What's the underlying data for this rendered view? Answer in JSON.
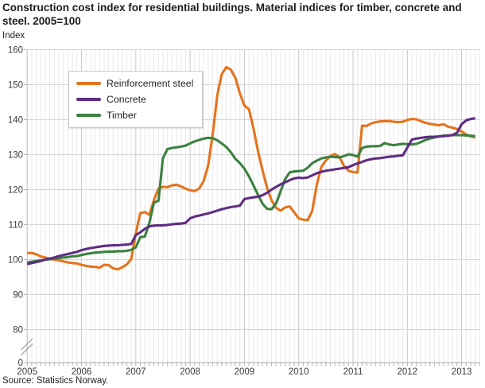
{
  "title": "Construction cost index for residential buildings. Material indices for timber, concrete and steel. 2005=100",
  "y_axis_unit": "Index",
  "source": "Source: Statistics Norway.",
  "chart_data": {
    "type": "line",
    "x_start": "2005-01",
    "x_frequency": "monthly",
    "x_tick_labels": [
      "2005",
      "2006",
      "2007",
      "2008",
      "2009",
      "2010",
      "2011",
      "2012",
      "2013"
    ],
    "y_ticks": [
      160,
      150,
      140,
      130,
      120,
      110,
      100,
      90,
      80
    ],
    "y_zero_label": "0",
    "ylim": [
      80,
      160
    ],
    "y_axis_break": true,
    "grid": "vertical minor monthly, vertical major yearly, horizontal every 10",
    "legend_position": "top-left",
    "colors": {
      "steel": "#e5731c",
      "concrete": "#5f2c83",
      "timber": "#3b8140",
      "grid_minor": "#e9e9e9",
      "grid_major": "#c9c9c9",
      "grid_h": "#d6d6d6",
      "axis": "#a8a8a8"
    },
    "series": [
      {
        "name": "Reinforcement steel",
        "color": "#e5731c",
        "values": [
          101.8,
          101.9,
          101.5,
          100.9,
          100.6,
          100.2,
          100.0,
          99.8,
          99.5,
          99.2,
          99.0,
          98.9,
          98.5,
          98.2,
          98.0,
          97.9,
          97.7,
          98.5,
          98.4,
          97.5,
          97.2,
          97.8,
          98.6,
          100.2,
          107.5,
          113.3,
          113.6,
          112.8,
          117.0,
          120.3,
          120.8,
          120.7,
          121.2,
          121.4,
          120.9,
          120.3,
          119.8,
          119.6,
          120.3,
          122.5,
          127.0,
          136.0,
          147.0,
          153.0,
          155.0,
          154.3,
          152.0,
          147.5,
          144.0,
          143.0,
          137.5,
          131.0,
          125.5,
          120.5,
          117.0,
          114.8,
          114.0,
          114.9,
          115.2,
          113.5,
          111.8,
          111.4,
          111.3,
          114.0,
          121.5,
          126.5,
          128.3,
          129.6,
          130.2,
          129.3,
          126.8,
          125.4,
          125.0,
          124.9,
          138.3,
          138.2,
          138.9,
          139.3,
          139.5,
          139.6,
          139.6,
          139.4,
          139.3,
          139.4,
          139.9,
          140.2,
          140.1,
          139.6,
          139.1,
          138.8,
          138.6,
          138.4,
          138.7,
          138.0,
          137.7,
          137.3,
          136.6,
          135.8,
          135.2,
          134.9
        ]
      },
      {
        "name": "Concrete",
        "color": "#5f2c83",
        "values": [
          98.7,
          99.0,
          99.3,
          99.6,
          100.0,
          100.3,
          100.6,
          101.0,
          101.3,
          101.6,
          101.9,
          102.2,
          102.7,
          103.0,
          103.3,
          103.5,
          103.7,
          103.9,
          104.0,
          104.1,
          104.1,
          104.2,
          104.3,
          104.5,
          107.0,
          107.8,
          108.8,
          109.5,
          109.7,
          109.8,
          109.8,
          109.9,
          110.1,
          110.2,
          110.3,
          110.5,
          111.8,
          112.3,
          112.6,
          112.9,
          113.2,
          113.6,
          114.0,
          114.4,
          114.7,
          115.0,
          115.2,
          115.4,
          117.3,
          117.6,
          117.8,
          118.0,
          118.4,
          119.1,
          120.0,
          120.8,
          121.5,
          122.1,
          122.7,
          123.2,
          123.4,
          123.3,
          123.5,
          124.1,
          124.7,
          125.1,
          125.4,
          125.6,
          125.8,
          126.0,
          126.2,
          126.4,
          127.0,
          127.5,
          127.9,
          128.4,
          128.7,
          128.9,
          129.0,
          129.2,
          129.4,
          129.5,
          129.7,
          129.8,
          132.0,
          134.3,
          134.6,
          134.8,
          135.0,
          135.1,
          135.1,
          135.2,
          135.3,
          135.4,
          135.6,
          136.3,
          138.7,
          139.8,
          140.2,
          140.4
        ]
      },
      {
        "name": "Timber",
        "color": "#3b8140",
        "values": [
          99.2,
          99.4,
          99.6,
          99.8,
          100.0,
          100.1,
          100.3,
          100.4,
          100.6,
          100.7,
          100.9,
          101.0,
          101.3,
          101.6,
          101.8,
          102.0,
          102.1,
          102.2,
          102.3,
          102.3,
          102.4,
          102.4,
          102.5,
          102.8,
          103.5,
          106.4,
          106.6,
          110.5,
          116.3,
          116.8,
          129.0,
          131.6,
          131.9,
          132.1,
          132.3,
          132.6,
          133.2,
          133.8,
          134.2,
          134.6,
          134.8,
          134.7,
          134.1,
          133.2,
          132.2,
          130.7,
          128.8,
          127.6,
          126.0,
          123.8,
          121.2,
          118.5,
          116.0,
          114.5,
          114.4,
          116.0,
          119.5,
          123.0,
          124.9,
          125.2,
          125.3,
          125.4,
          126.3,
          127.6,
          128.3,
          128.9,
          129.2,
          129.4,
          129.3,
          129.2,
          129.6,
          130.1,
          129.9,
          129.4,
          131.9,
          132.3,
          132.4,
          132.4,
          132.5,
          133.3,
          132.9,
          132.7,
          132.9,
          133.1,
          133.0,
          132.9,
          133.1,
          133.6,
          134.2,
          134.6,
          134.9,
          135.2,
          135.4,
          135.5,
          135.6,
          135.6,
          135.6,
          135.5,
          135.4,
          135.3
        ]
      }
    ]
  }
}
